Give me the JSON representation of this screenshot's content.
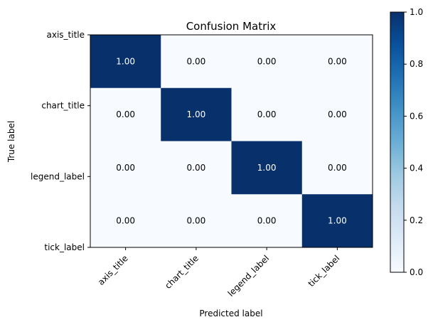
{
  "chart_data": {
    "type": "heatmap",
    "title": "Confusion Matrix",
    "xlabel": "Predicted label",
    "ylabel": "True label",
    "x_categories": [
      "axis_title",
      "chart_title",
      "legend_label",
      "tick_label"
    ],
    "y_categories": [
      "axis_title",
      "chart_title",
      "legend_label",
      "tick_label"
    ],
    "values": [
      [
        1.0,
        0.0,
        0.0,
        0.0
      ],
      [
        0.0,
        1.0,
        0.0,
        0.0
      ],
      [
        0.0,
        0.0,
        1.0,
        0.0
      ],
      [
        0.0,
        0.0,
        0.0,
        1.0
      ]
    ],
    "cell_labels": [
      [
        "1.00",
        "0.00",
        "0.00",
        "0.00"
      ],
      [
        "0.00",
        "1.00",
        "0.00",
        "0.00"
      ],
      [
        "0.00",
        "0.00",
        "1.00",
        "0.00"
      ],
      [
        "0.00",
        "0.00",
        "0.00",
        "1.00"
      ]
    ],
    "colorscale": {
      "name": "Blues",
      "low": "#f7fbff",
      "high": "#08306b"
    },
    "colorbar": {
      "range": [
        0.0,
        1.0
      ],
      "ticks": [
        0.0,
        0.2,
        0.4,
        0.6,
        0.8,
        1.0
      ],
      "tick_labels": [
        "0.0",
        "0.2",
        "0.4",
        "0.6",
        "0.8",
        "1.0"
      ]
    },
    "grid": false
  }
}
